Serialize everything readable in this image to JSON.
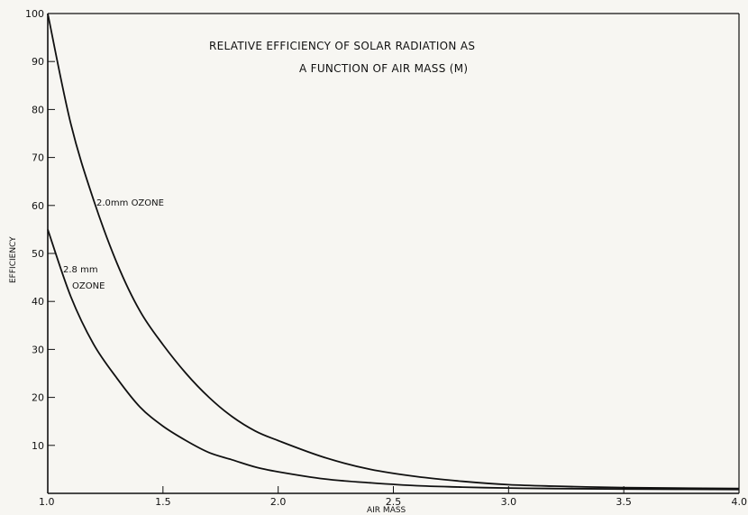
{
  "chart_data": {
    "type": "line",
    "title_lines": [
      "RELATIVE EFFICIENCY OF SOLAR RADIATION AS",
      "A FUNCTION OF AIR MASS (M)"
    ],
    "xlabel": "AIR MASS",
    "ylabel": "EFFICIENCY",
    "xlim": [
      1.0,
      4.0
    ],
    "ylim": [
      0,
      100
    ],
    "x_ticks": [
      1.0,
      1.5,
      2.0,
      2.5,
      3.0,
      3.5,
      4.0
    ],
    "x_tick_labels": [
      "1.0",
      "1.5",
      "2.0",
      "2.5",
      "3.0",
      "3.5",
      "4.0"
    ],
    "y_ticks": [
      10,
      20,
      30,
      40,
      50,
      60,
      70,
      80,
      90,
      100
    ],
    "y_tick_labels": [
      "10",
      "20",
      "30",
      "40",
      "50",
      "60",
      "70",
      "80",
      "90",
      "100"
    ],
    "grid": false,
    "legend": "none",
    "series": [
      {
        "label_lines": [
          "2.0mm OZONE"
        ],
        "color": "#111111",
        "x": [
          1.0,
          1.1,
          1.2,
          1.3,
          1.4,
          1.5,
          1.6,
          1.7,
          1.8,
          1.9,
          2.0,
          2.2,
          2.4,
          2.6,
          2.8,
          3.0,
          3.2,
          3.5,
          4.0
        ],
        "y": [
          100,
          77,
          61,
          48,
          38,
          31,
          25,
          20,
          16,
          13,
          11,
          7.5,
          5,
          3.5,
          2.5,
          1.8,
          1.5,
          1.2,
          1.0
        ]
      },
      {
        "label_lines": [
          "2.8 mm",
          "OZONE"
        ],
        "color": "#111111",
        "x": [
          1.0,
          1.1,
          1.2,
          1.3,
          1.4,
          1.5,
          1.6,
          1.7,
          1.8,
          1.9,
          2.0,
          2.2,
          2.4,
          2.6,
          2.8,
          3.0,
          3.2,
          3.5,
          4.0
        ],
        "y": [
          55,
          41,
          31,
          24,
          18,
          14,
          11,
          8.5,
          7,
          5.5,
          4.5,
          3,
          2.2,
          1.6,
          1.3,
          1.1,
          1.0,
          0.9,
          0.8
        ]
      }
    ]
  }
}
